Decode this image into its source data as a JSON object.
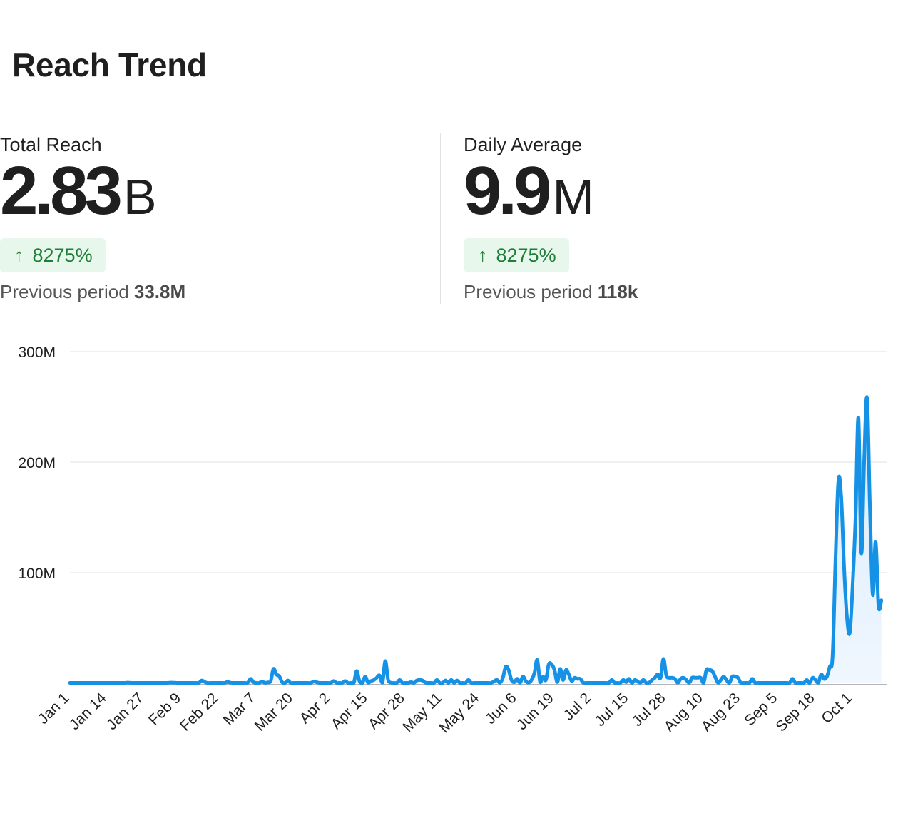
{
  "header": {
    "title": "Reach Trend"
  },
  "stats": [
    {
      "label": "Total Reach",
      "value": "2.83",
      "unit": "B",
      "change": "8275%",
      "change_direction": "up",
      "change_icon": "arrow-up-icon",
      "previous_label": "Previous period",
      "previous_value": "33.8M"
    },
    {
      "label": "Daily Average",
      "value": "9.9",
      "unit": "M",
      "change": "8275%",
      "change_direction": "up",
      "change_icon": "arrow-up-icon",
      "previous_label": "Previous period",
      "previous_value": "118k"
    }
  ],
  "colors": {
    "line": "#1592e6",
    "fill": "#e3f1fd",
    "badge_bg": "#e8f7ec",
    "badge_text": "#1e7e38",
    "grid": "#ececec",
    "baseline": "#b5b5b5"
  },
  "chart_data": {
    "type": "area",
    "title": "",
    "xlabel": "",
    "ylabel": "",
    "ylim": [
      0,
      300
    ],
    "y_unit": "M",
    "y_ticks": [
      "100M",
      "200M",
      "300M"
    ],
    "y_tick_values": [
      100,
      200,
      300
    ],
    "x_tick_labels": [
      "Jan 1",
      "Jan 14",
      "Jan 27",
      "Feb 9",
      "Feb 22",
      "Mar 7",
      "Mar 20",
      "Apr 2",
      "Apr 15",
      "Apr 28",
      "May 11",
      "May 24",
      "Jun 6",
      "Jun 19",
      "Jul 2",
      "Jul 15",
      "Jul 28",
      "Aug 10",
      "Aug 23",
      "Sep 5",
      "Sep 18",
      "Oct 1"
    ],
    "x_tick_interval_days": 13,
    "grid": true,
    "legend": "none",
    "series": [
      {
        "name": "Reach",
        "values": [
          0.3,
          0.3,
          0.3,
          0.3,
          0.3,
          0.3,
          0.3,
          0.3,
          0.3,
          0.3,
          0.3,
          0.3,
          0.3,
          0.3,
          0.3,
          0.3,
          0.3,
          0.3,
          0.3,
          0.3,
          0.6,
          0.4,
          0.3,
          0.3,
          0.3,
          0.3,
          0.3,
          0.3,
          0.3,
          0.3,
          0.3,
          0.3,
          0.3,
          0.3,
          0.3,
          0.6,
          0.5,
          0.4,
          0.3,
          0.3,
          0.3,
          0.3,
          0.3,
          0.3,
          0.3,
          0.3,
          2.5,
          1.2,
          0.3,
          0.3,
          0.3,
          0.3,
          0.3,
          0.3,
          0.3,
          1.2,
          0.5,
          0.3,
          0.3,
          0.3,
          0.3,
          0.3,
          0.3,
          4.0,
          1.0,
          0.3,
          0.3,
          1.5,
          0.4,
          0.8,
          1.8,
          13.0,
          8.0,
          6.5,
          1.0,
          0.3,
          2.5,
          0.3,
          0.3,
          0.3,
          0.3,
          0.3,
          0.3,
          0.3,
          0.3,
          1.5,
          1.0,
          0.3,
          0.3,
          0.3,
          0.3,
          0.3,
          2.0,
          0.3,
          0.3,
          0.3,
          2.0,
          0.3,
          0.3,
          0.3,
          11.0,
          2.0,
          0.3,
          6.0,
          0.5,
          2.0,
          3.0,
          5.0,
          7.0,
          0.5,
          20.0,
          3.0,
          0.5,
          0.3,
          0.3,
          3.0,
          0.3,
          0.3,
          0.3,
          1.0,
          0.3,
          2.5,
          3.0,
          2.5,
          0.5,
          0.3,
          0.3,
          0.3,
          3.0,
          0.3,
          0.3,
          2.5,
          0.3,
          3.0,
          0.3,
          2.5,
          0.3,
          0.3,
          0.3,
          3.0,
          0.3,
          0.3,
          0.3,
          0.3,
          0.3,
          0.3,
          0.3,
          0.3,
          2.0,
          3.0,
          0.5,
          5.0,
          15.0,
          12.0,
          3.0,
          1.0,
          4.0,
          0.5,
          6.0,
          2.0,
          0.5,
          3.0,
          9.0,
          21.0,
          1.0,
          6.0,
          3.0,
          17.0,
          17.0,
          12.0,
          1.0,
          13.0,
          3.0,
          12.0,
          8.0,
          2.0,
          5.0,
          4.0,
          4.0,
          0.5,
          0.3,
          0.3,
          0.3,
          0.3,
          0.3,
          0.3,
          0.3,
          0.3,
          0.3,
          3.0,
          0.3,
          0.3,
          0.3,
          3.0,
          1.0,
          4.0,
          0.3,
          3.0,
          1.5,
          0.5,
          3.0,
          0.3,
          0.5,
          3.0,
          5.0,
          8.0,
          5.0,
          22.0,
          7.0,
          5.0,
          5.0,
          4.0,
          0.5,
          4.0,
          5.0,
          3.0,
          0.5,
          5.0,
          5.0,
          5.0,
          5.0,
          0.3,
          12.0,
          12.0,
          11.0,
          6.0,
          0.5,
          3.0,
          6.0,
          3.0,
          0.3,
          6.0,
          6.0,
          5.0,
          0.3,
          0.3,
          0.3,
          0.3,
          4.0,
          0.3,
          0.3,
          0.3,
          0.3,
          0.3,
          0.3,
          0.3,
          0.3,
          0.3,
          0.3,
          0.3,
          0.3,
          0.3,
          4.0,
          0.3,
          0.3,
          0.3,
          0.3,
          3.0,
          0.3,
          5.0,
          3.0,
          0.5,
          8.0,
          4.0,
          6.0,
          15.0,
          25.0,
          110.0,
          183.0,
          168.0,
          105.0,
          60.0,
          46.0,
          90.0,
          150.0,
          240.0,
          118.0,
          200.0,
          258.0,
          160.0,
          80.0,
          128.0,
          70.0,
          75.0
        ]
      }
    ],
    "x_start": "Jan 1",
    "x_end": "Oct 13"
  }
}
